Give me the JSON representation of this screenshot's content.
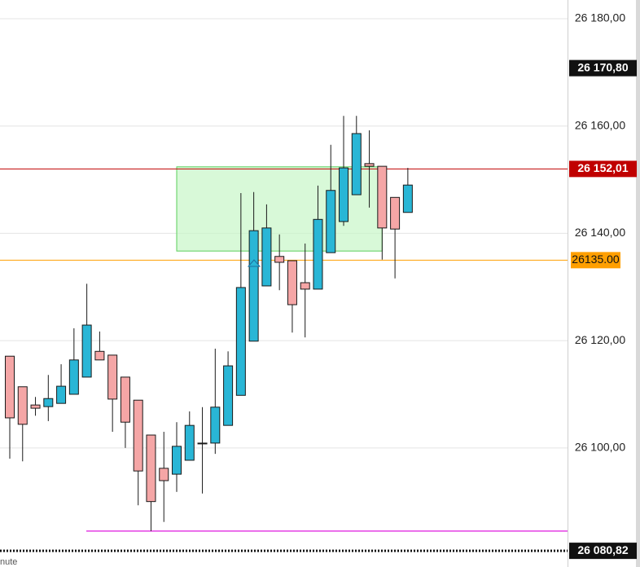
{
  "chart_data": {
    "type": "candlestick",
    "categories": [
      null,
      null,
      null,
      null,
      null,
      null,
      null,
      null,
      null,
      null,
      null,
      null,
      null,
      null,
      null,
      null,
      null,
      null,
      null,
      null,
      null,
      null,
      null,
      null,
      null,
      null,
      null,
      null,
      null,
      null,
      null,
      null
    ],
    "open": [
      26117.1,
      26111.4,
      26108.0,
      26107.7,
      26108.3,
      26110.0,
      26113.2,
      26118.0,
      26117.3,
      26113.2,
      26108.9,
      26102.4,
      26096.2,
      26095.1,
      26097.7,
      26100.9,
      26100.9,
      26104.2,
      26109.8,
      26119.9,
      26130.2,
      26135.7,
      26134.9,
      26130.8,
      26129.6,
      26136.4,
      26142.2,
      26147.2,
      26153.0,
      26152.5,
      26146.7,
      26143.9
    ],
    "high": [
      26117.1,
      26111.4,
      26109.5,
      26113.6,
      26115.6,
      26122.3,
      26130.6,
      26121.7,
      26117.3,
      26113.2,
      26108.9,
      26102.4,
      26103.0,
      26104.8,
      26106.8,
      26107.6,
      26118.5,
      26118.0,
      26147.5,
      26147.7,
      26145.4,
      26139.8,
      26134.9,
      26138.1,
      26148.9,
      26156.5,
      26161.9,
      26161.9,
      26159.2,
      26152.5,
      26146.7,
      26152.2
    ],
    "low": [
      26098.0,
      26097.5,
      26106.0,
      26105.0,
      26108.3,
      26110.0,
      26113.2,
      26116.4,
      26103.0,
      26100.0,
      26089.3,
      26084.5,
      26086.2,
      26091.8,
      26097.7,
      26091.5,
      26098.9,
      26104.2,
      26109.8,
      26119.9,
      26130.2,
      26129.4,
      26121.5,
      26120.6,
      26129.6,
      26136.4,
      26141.4,
      26147.2,
      26144.8,
      26135.1,
      26131.6,
      26143.9
    ],
    "close": [
      26105.6,
      26104.4,
      26107.4,
      26109.2,
      26111.5,
      26116.4,
      26122.9,
      26116.4,
      26109.1,
      26104.8,
      26095.7,
      26090.0,
      26093.9,
      26100.3,
      26104.2,
      26100.9,
      26107.6,
      26115.3,
      26129.9,
      26140.5,
      26141.0,
      26134.6,
      26126.7,
      26129.6,
      26142.6,
      26148.0,
      26152.2,
      26158.6,
      26152.5,
      26141.0,
      26140.8,
      26149.0
    ],
    "up_color": "#29b6d6",
    "down_color": "#f5a6a6",
    "ylim": [
      26077.8,
      26183.5
    ],
    "yticks": [
      {
        "value": 26100,
        "label": "26 100,00"
      },
      {
        "value": 26120,
        "label": "26 120,00"
      },
      {
        "value": 26140,
        "label": "26 140,00"
      },
      {
        "value": 26160,
        "label": "26 160,00"
      },
      {
        "value": 26180,
        "label": "26 180,00"
      }
    ],
    "grid": true,
    "zone": {
      "top": 26152.4,
      "bottom": 26136.7,
      "color": "#c8f7c8"
    },
    "lines": [
      {
        "value": 26084.5,
        "color": "#e43fe4"
      }
    ],
    "price_levels": [
      {
        "value": 26170.8,
        "label": "26 170,80",
        "color": "#111111",
        "line": "none"
      },
      {
        "value": 26152.01,
        "label": "26 152,01",
        "color": "#c00000",
        "line": "solid"
      },
      {
        "value": 26135.0,
        "label": "26135.00",
        "color": "#ff9f00",
        "line": "solid"
      },
      {
        "value": 26080.82,
        "label": "26 080,82",
        "color": "#111111",
        "line": "dotted"
      }
    ],
    "footer_text": "nute"
  }
}
